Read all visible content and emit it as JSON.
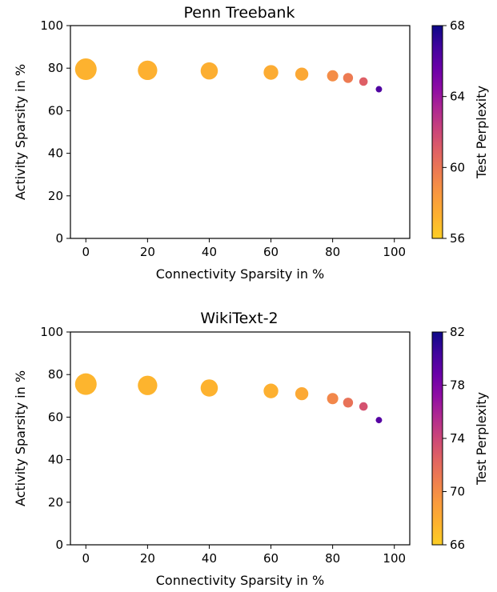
{
  "chart_data": [
    {
      "type": "scatter",
      "title": "Penn Treebank",
      "xlabel": "Connectivity Sparsity in %",
      "ylabel": "Activity Sparsity in %",
      "xlim": [
        -5,
        105
      ],
      "ylim": [
        0,
        100
      ],
      "xticks": [
        "0",
        "20",
        "40",
        "60",
        "80",
        "100"
      ],
      "yticks": [
        "0",
        "20",
        "40",
        "60",
        "80",
        "100"
      ],
      "colorbar": {
        "label": "Test Perplexity",
        "range": [
          56,
          68
        ],
        "ticks": [
          "56",
          "60",
          "64",
          "68"
        ],
        "colormap": "plasma_r"
      },
      "points": [
        {
          "x": 0,
          "y": 79.5,
          "perplexity": 57.2
        },
        {
          "x": 20,
          "y": 79.0,
          "perplexity": 57.3
        },
        {
          "x": 40,
          "y": 78.7,
          "perplexity": 57.4
        },
        {
          "x": 60,
          "y": 78.0,
          "perplexity": 57.5
        },
        {
          "x": 70,
          "y": 77.2,
          "perplexity": 57.7
        },
        {
          "x": 80,
          "y": 76.4,
          "perplexity": 59.0
        },
        {
          "x": 85,
          "y": 75.4,
          "perplexity": 59.8
        },
        {
          "x": 90,
          "y": 73.7,
          "perplexity": 61.0
        },
        {
          "x": 95,
          "y": 70.1,
          "perplexity": 66.4
        }
      ]
    },
    {
      "type": "scatter",
      "title": "WikiText-2",
      "xlabel": "Connectivity Sparsity in %",
      "ylabel": "Activity Sparsity in %",
      "xlim": [
        -5,
        105
      ],
      "ylim": [
        0,
        100
      ],
      "xticks": [
        "0",
        "20",
        "40",
        "60",
        "80",
        "100"
      ],
      "yticks": [
        "0",
        "20",
        "40",
        "60",
        "80",
        "100"
      ],
      "colorbar": {
        "label": "Test Perplexity",
        "range": [
          66,
          82
        ],
        "ticks": [
          "66",
          "70",
          "74",
          "78",
          "82"
        ],
        "colormap": "plasma_r"
      },
      "points": [
        {
          "x": 0,
          "y": 75.5,
          "perplexity": 67.4
        },
        {
          "x": 20,
          "y": 74.9,
          "perplexity": 67.5
        },
        {
          "x": 40,
          "y": 73.7,
          "perplexity": 67.6
        },
        {
          "x": 60,
          "y": 72.3,
          "perplexity": 67.7
        },
        {
          "x": 70,
          "y": 71.0,
          "perplexity": 68.2
        },
        {
          "x": 80,
          "y": 68.7,
          "perplexity": 70.3
        },
        {
          "x": 85,
          "y": 66.8,
          "perplexity": 71.6
        },
        {
          "x": 90,
          "y": 65.0,
          "perplexity": 73.4
        },
        {
          "x": 95,
          "y": 58.6,
          "perplexity": 79.6
        }
      ]
    }
  ]
}
